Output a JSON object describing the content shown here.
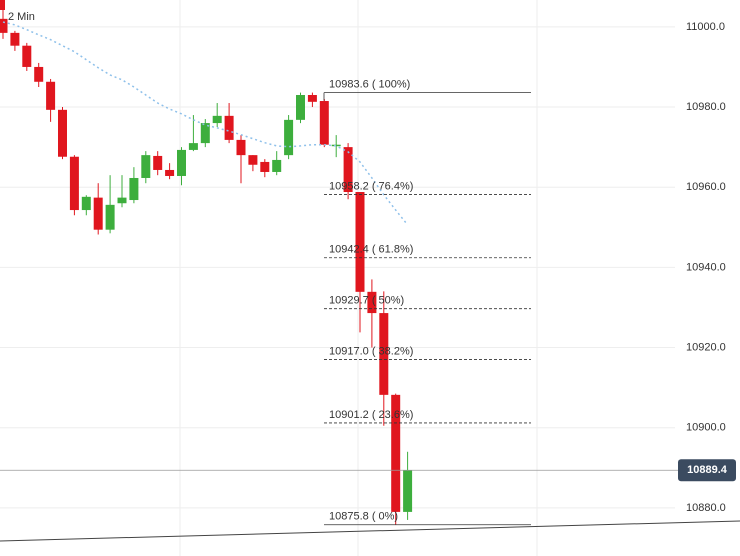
{
  "chart_data": {
    "type": "candlestick",
    "interval_label": "2 Min",
    "ylim": [
      10868.0,
      11006.7
    ],
    "yticks": [
      {
        "value": 11000,
        "label": "11000.0"
      },
      {
        "value": 10980,
        "label": "10980.0"
      },
      {
        "value": 10960,
        "label": "10960.0"
      },
      {
        "value": 10940,
        "label": "10940.0"
      },
      {
        "value": 10920,
        "label": "10920.0"
      },
      {
        "value": 10900,
        "label": "10900.0"
      },
      {
        "value": 10880,
        "label": "10880.0"
      }
    ],
    "grid": true,
    "up_color": "#3dae3d",
    "down_color": "#e0161e",
    "ma_color": "#8ec0ea",
    "candles": {
      "open": [
        11002,
        10998.5,
        10995.3,
        10990,
        10986.3,
        10979.3,
        10967.6,
        10954.3,
        10957.4,
        10949.4,
        10956,
        10956.8,
        10962.3,
        10967.8,
        10964.3,
        10962.8,
        10969.3,
        10971,
        10976,
        10977.8,
        10971.8,
        10968,
        10966.3,
        10963.8,
        10968,
        10976.8,
        10983,
        10981.5,
        10970.4,
        10970,
        10958.8,
        10933.9,
        10928.6,
        10908.2,
        10879
      ],
      "high": [
        11005,
        10999,
        10996,
        10991,
        10987,
        10980,
        10968,
        10958,
        10961,
        10963,
        10963,
        10965,
        10969,
        10969,
        10966,
        10970,
        10978,
        10977,
        10981,
        10981,
        10973,
        10968,
        10967,
        10969,
        10978,
        10983.6,
        10983.6,
        10982,
        10973,
        10971,
        10958.8,
        10937,
        10934,
        10908.5,
        10894
      ],
      "low": [
        10997,
        10994,
        10989,
        10985,
        10976.3,
        10967,
        10953,
        10953,
        10948.2,
        10948.5,
        10955,
        10956,
        10961,
        10963,
        10962,
        10960.5,
        10969,
        10970,
        10975,
        10971,
        10961,
        10964,
        10962.5,
        10963,
        10967,
        10976,
        10980,
        10970,
        10967.5,
        10957,
        10923.8,
        10920,
        10900.5,
        10875.8,
        10877
      ],
      "close": [
        10998.5,
        10995.3,
        10990,
        10986.3,
        10979.3,
        10967.6,
        10954.3,
        10957.6,
        10949.4,
        10955.6,
        10957.4,
        10962.3,
        10968,
        10964.3,
        10962.8,
        10969.3,
        10971,
        10976,
        10977.8,
        10971.8,
        10968,
        10965.6,
        10963.8,
        10966.8,
        10976.8,
        10983,
        10981.3,
        10970.6,
        10970.6,
        10958.8,
        10933.9,
        10928.6,
        10908.2,
        10879,
        10889.4
      ]
    },
    "moving_average": [
      11001.2,
      11000.5,
      10999.3,
      10998.0,
      10996.8,
      10995.3,
      10993.8,
      10991.8,
      10989.8,
      10988.0,
      10986.8,
      10985.0,
      10983.0,
      10981.0,
      10979.5,
      10978.3,
      10976.8,
      10975.5,
      10974.8,
      10974.0,
      10973.1,
      10972.1,
      10971.1,
      10970.3,
      10970.1,
      10970.3,
      10970.6,
      10970.6,
      10970.3,
      10968.8,
      10966.3,
      10962.3,
      10958.1,
      10954.3,
      10950.6
    ],
    "fib_levels": [
      {
        "value": 10983.6,
        "label": "10983.6 ( 100%)"
      },
      {
        "value": 10958.2,
        "label": "10958.2 ( 76.4%)"
      },
      {
        "value": 10942.4,
        "label": "10942.4 ( 61.8%)"
      },
      {
        "value": 10929.7,
        "label": "10929.7 ( 50%)"
      },
      {
        "value": 10917.0,
        "label": "10917.0 ( 38.2%)"
      },
      {
        "value": 10901.2,
        "label": "10901.2 ( 23.6%)"
      },
      {
        "value": 10875.8,
        "label": "10875.8 ( 0%)"
      }
    ],
    "last_price": 10889.4
  }
}
